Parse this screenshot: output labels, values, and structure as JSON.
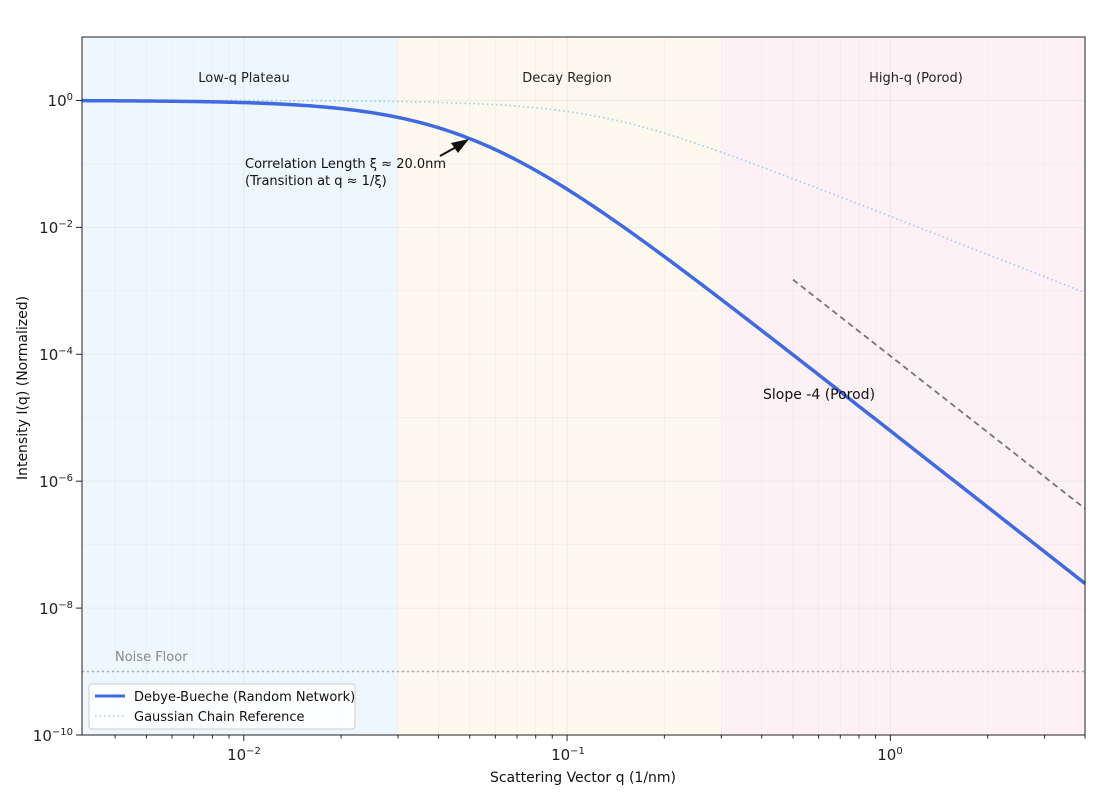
{
  "chart_data": {
    "type": "line",
    "xlabel": "Scattering Vector q (1/nm)",
    "ylabel": "Intensity I(q) (Normalized)",
    "x_scale": "log",
    "y_scale": "log",
    "xlim": [
      0.00316,
      4.0
    ],
    "ylim": [
      1e-10,
      10
    ],
    "grid": true,
    "legend_position": "lower-left",
    "x_tick_labels": [
      {
        "base": "10",
        "exp": "−2",
        "value": 0.01
      },
      {
        "base": "10",
        "exp": "−1",
        "value": 0.1
      },
      {
        "base": "10",
        "exp": "0",
        "value": 1
      }
    ],
    "y_tick_labels": [
      {
        "base": "10",
        "exp": "0",
        "value": 1
      },
      {
        "base": "10",
        "exp": "−2",
        "value": 0.01
      },
      {
        "base": "10",
        "exp": "−4",
        "value": 0.0001
      },
      {
        "base": "10",
        "exp": "−6",
        "value": 1e-06
      },
      {
        "base": "10",
        "exp": "−8",
        "value": 1e-08
      },
      {
        "base": "10",
        "exp": "−10",
        "value": 1e-10
      }
    ],
    "regions": [
      {
        "label": "Low-q Plateau",
        "x_range": [
          0.00316,
          0.03
        ],
        "color": "#eef7fd"
      },
      {
        "label": "Decay Region",
        "x_range": [
          0.03,
          0.3
        ],
        "color": "#fdf9ee"
      },
      {
        "label": "High-q (Porod)",
        "x_range": [
          0.3,
          4.0
        ],
        "color": "#fdf1f5"
      }
    ],
    "series": [
      {
        "name": "Debye-Bueche (Random Network)",
        "color": "#4169e1",
        "style": "solid",
        "model": "debye-bueche",
        "xi_nm": 20.0,
        "points": [
          [
            0.00316,
            0.96
          ],
          [
            0.01,
            0.8
          ],
          [
            0.02,
            0.5
          ],
          [
            0.05,
            0.16
          ],
          [
            0.1,
            0.025
          ],
          [
            0.3,
            0.00068
          ],
          [
            1.0,
            6.2e-06
          ],
          [
            4.0,
            2.4e-08
          ]
        ]
      },
      {
        "name": "Gaussian Chain Reference",
        "color": "#9ecfee",
        "style": "dotted",
        "model": "debye-gaussian-chain",
        "xi_nm": 20.0,
        "points": [
          [
            0.00316,
            0.99
          ],
          [
            0.01,
            0.98
          ],
          [
            0.03,
            0.88
          ],
          [
            0.1,
            0.36
          ],
          [
            0.3,
            0.05
          ],
          [
            1.0,
            0.005
          ],
          [
            4.0,
            0.00031
          ]
        ]
      }
    ],
    "reference_lines": [
      {
        "label": "Slope -4 (Porod)",
        "style": "dashed",
        "color": "#777777",
        "from": [
          0.5,
          0.0015
        ],
        "to": [
          4.0,
          3.7e-07
        ]
      },
      {
        "label": "Noise Floor",
        "style": "dotted",
        "color": "#aaaaaa",
        "y": 1e-09
      }
    ],
    "annotations": [
      {
        "line1": "Correlation Length ξ ≈ 20.0nm",
        "line2": "(Transition at q ≈ 1/ξ)",
        "arrow_to": [
          0.05,
          0.25
        ]
      }
    ]
  }
}
